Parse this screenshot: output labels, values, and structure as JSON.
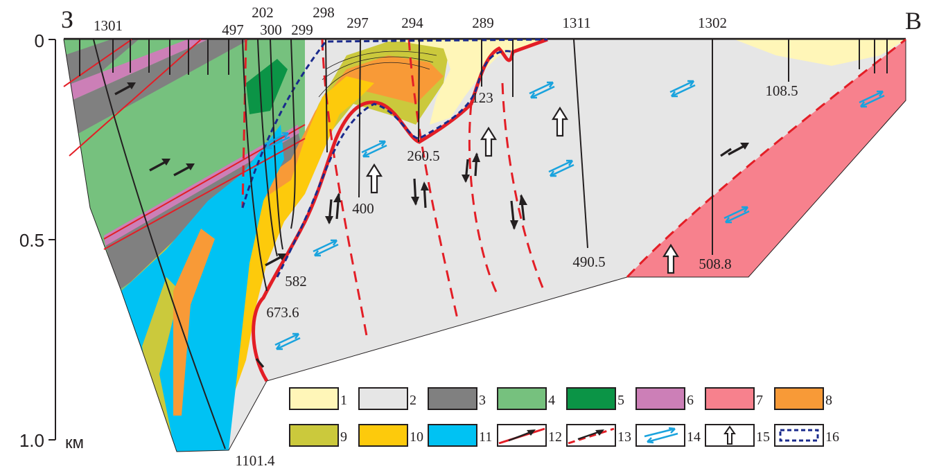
{
  "directions": {
    "west": "З",
    "east": "В"
  },
  "depth_axis": {
    "unit": "км",
    "ticks": [
      "0",
      "0.5",
      "1.0"
    ]
  },
  "wells": [
    {
      "id": "1301"
    },
    {
      "id": "497"
    },
    {
      "id": "202"
    },
    {
      "id": "300"
    },
    {
      "id": "299"
    },
    {
      "id": "298"
    },
    {
      "id": "297"
    },
    {
      "id": "294"
    },
    {
      "id": "289"
    },
    {
      "id": "1311"
    },
    {
      "id": "1302"
    }
  ],
  "well_depths": [
    "1101.4",
    "673.6",
    "582",
    "400",
    "260.5",
    "123",
    "490.5",
    "508.8",
    "108.5"
  ],
  "legend": {
    "items": [
      {
        "num": "1",
        "kind": "fill",
        "color": "#fff6b8"
      },
      {
        "num": "2",
        "kind": "fill",
        "color": "#e6e6e6"
      },
      {
        "num": "3",
        "kind": "fill",
        "color": "#808080"
      },
      {
        "num": "4",
        "kind": "fill",
        "color": "#76c17e"
      },
      {
        "num": "5",
        "kind": "fill",
        "color": "#0b9446"
      },
      {
        "num": "6",
        "kind": "fill",
        "color": "#cc7fb7"
      },
      {
        "num": "7",
        "kind": "fill",
        "color": "#f7818d"
      },
      {
        "num": "8",
        "kind": "fill",
        "color": "#f89a37"
      },
      {
        "num": "9",
        "kind": "fill",
        "color": "#cbc93c"
      },
      {
        "num": "10",
        "kind": "fill",
        "color": "#fdca0c"
      },
      {
        "num": "11",
        "kind": "fill",
        "color": "#00c2f3"
      },
      {
        "num": "12",
        "kind": "fault-solid"
      },
      {
        "num": "13",
        "kind": "fault-dashed"
      },
      {
        "num": "14",
        "kind": "strike-slip"
      },
      {
        "num": "15",
        "kind": "uplift"
      },
      {
        "num": "16",
        "kind": "contour-dashed"
      }
    ]
  },
  "colors": {
    "fault_red": "#e31e26",
    "blue_arrow": "#1aa3dd",
    "navy_dash": "#1a2a8c",
    "outline": "#231f20"
  }
}
